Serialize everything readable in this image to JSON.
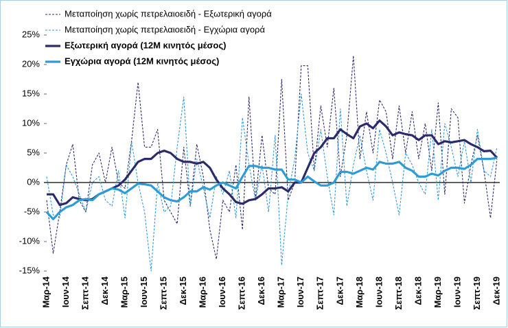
{
  "chart_data": {
    "type": "line",
    "categories": [
      "Μαρ-14",
      null,
      null,
      "Ιουν-14",
      null,
      null,
      "Σεπτ-14",
      null,
      null,
      "Δεκ-14",
      null,
      null,
      "Μαρ-15",
      null,
      null,
      "Ιουν-15",
      null,
      null,
      "Σεπτ-15",
      null,
      null,
      "Δεκ-15",
      null,
      null,
      "Μαρ-16",
      null,
      null,
      "Ιουν-16",
      null,
      null,
      "Σεπτ-16",
      null,
      null,
      "Δεκ-16",
      null,
      null,
      "Μαρ-17",
      null,
      null,
      "Ιουν-17",
      null,
      null,
      "Σεπτ-17",
      null,
      null,
      "Δεκ-17",
      null,
      null,
      "Μαρ-18",
      null,
      null,
      "Ιουν-18",
      null,
      null,
      "Σεπτ-18",
      null,
      null,
      "Δεκ-18",
      null,
      null,
      "Μαρ-19",
      null,
      null,
      "Ιουν-19",
      null,
      null,
      "Σεπτ-19",
      null,
      null,
      "Δεκ-19"
    ],
    "series": [
      {
        "name": "Μεταποίηση χωρίς πετρελαιοειδή - Εξωτερική αγορά",
        "color": "#2b2b6b",
        "dashed": true,
        "bold": false,
        "values": [
          -3,
          -12,
          -5,
          3,
          6.5,
          -3,
          -5,
          3,
          5,
          0,
          6,
          0,
          -1,
          7,
          17,
          6,
          6,
          9,
          -3,
          -5,
          -7,
          6,
          -4,
          6.5,
          1,
          -8,
          -13,
          -3,
          -5,
          3,
          -8,
          14.5,
          -3,
          8,
          -1,
          -2,
          17.5,
          -3,
          0,
          19.8,
          19.8,
          2,
          13,
          6,
          16,
          1,
          8,
          21.5,
          4,
          12,
          5,
          14,
          12,
          4,
          13,
          5,
          12,
          4,
          10,
          2,
          13.5,
          -2,
          12.5,
          11,
          -3.5,
          3,
          8,
          2,
          -6,
          4
        ]
      },
      {
        "name": "Μεταποίηση χωρίς πετρελαιοειδή - Εγχώρια αγορά",
        "color": "#2f9bd6",
        "dashed": true,
        "bold": false,
        "values": [
          1,
          -5.5,
          -6,
          3,
          1,
          -2,
          -5,
          0,
          1,
          -3,
          -4,
          2,
          -6,
          7,
          0,
          -5,
          -15,
          0,
          -5,
          -4,
          6,
          14.5,
          -4,
          4,
          -1,
          -6,
          1,
          -2,
          2,
          -6,
          11,
          3,
          -3,
          3,
          -5,
          8,
          -14,
          -2,
          4,
          15,
          5,
          2,
          9,
          1,
          -5.5,
          12.5,
          -4,
          3,
          8,
          2,
          -3,
          9,
          5,
          0,
          -5.5,
          5,
          3,
          0,
          -2,
          9,
          -3,
          10,
          6,
          1,
          7,
          0,
          9,
          2,
          1,
          6
        ]
      },
      {
        "name": "Εξωτερική αγορά (12Μ κινητός μέσος)",
        "color": "#2b2b6b",
        "dashed": false,
        "bold": true,
        "values": [
          -2,
          -2,
          -3.8,
          -3.5,
          -2.5,
          -2.8,
          -3,
          -2.8,
          -2,
          -1.5,
          -1,
          -0.5,
          0.5,
          2,
          3.5,
          4,
          4,
          5,
          5.4,
          5,
          4,
          3.5,
          3.5,
          3.2,
          3.5,
          2.5,
          0.5,
          -1,
          -2,
          -3.3,
          -3.6,
          -3,
          -2.8,
          -2,
          -1,
          -1,
          -0.8,
          -1.5,
          0,
          0,
          2.5,
          5,
          6,
          7.5,
          7.5,
          9,
          8.2,
          7.5,
          9.5,
          10,
          9.2,
          10.5,
          9.5,
          8,
          8.5,
          8.2,
          8,
          7.2,
          8,
          8,
          6.5,
          7,
          6.8,
          7,
          7.2,
          6.5,
          6,
          5.3,
          5.4,
          4.2
        ]
      },
      {
        "name": "Εγχώρια αγορά (12Μ κινητός μέσος)",
        "color": "#2f9bd6",
        "dashed": false,
        "bold": true,
        "values": [
          -5,
          -6.2,
          -5,
          -4.2,
          -3.8,
          -3,
          -2.8,
          -3,
          -2,
          -1.5,
          -1,
          -1.2,
          -1.8,
          -1,
          -0.2,
          -0.3,
          -0.5,
          -1.5,
          -2.5,
          -3,
          -3.2,
          -2.5,
          -1.5,
          -1.5,
          -0.8,
          -1.2,
          -0.5,
          0,
          -0.5,
          -1,
          1,
          2.8,
          2.8,
          2.5,
          2.5,
          2.2,
          2.2,
          0.5,
          0.5,
          0,
          1,
          0.2,
          -0.5,
          -0.5,
          0,
          1.8,
          1.8,
          1.5,
          2,
          2.5,
          2.2,
          3.5,
          3.2,
          3.2,
          3.5,
          2.5,
          2,
          1,
          1,
          1.5,
          1.2,
          2,
          2.5,
          2.5,
          2.3,
          3,
          4,
          4,
          4,
          4.2
        ]
      }
    ],
    "ylim": [
      -15,
      25
    ],
    "yticks": [
      {
        "value": -15,
        "label": "-15%"
      },
      {
        "value": -10,
        "label": "-10%"
      },
      {
        "value": -5,
        "label": "-5%"
      },
      {
        "value": 0,
        "label": "0%"
      },
      {
        "value": 5,
        "label": "5%"
      },
      {
        "value": 10,
        "label": "10%"
      },
      {
        "value": 15,
        "label": "15%"
      },
      {
        "value": 20,
        "label": "20%"
      },
      {
        "value": 25,
        "label": "25%"
      }
    ],
    "legend": "top-left",
    "grid": false
  }
}
